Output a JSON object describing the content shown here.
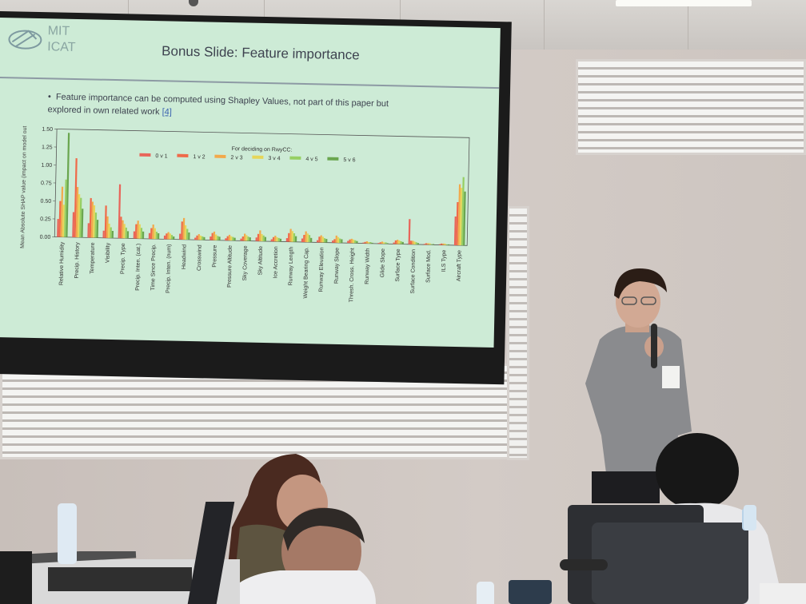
{
  "slide": {
    "logo_text_line1": "MIT",
    "logo_text_line2": "ICAT",
    "title": "Bonus Slide: Feature importance",
    "bullet_text": "Feature importance can be computed using Shapley Values, not part of this paper but explored in own related work",
    "bullet_ref": "[4]"
  },
  "colors": {
    "screen_bg": "#cdebd6",
    "frame": "#1b1b1b",
    "wall": "#cfc7c3",
    "series": [
      "#e8655a",
      "#ef6a4a",
      "#f2a94b",
      "#e6d659",
      "#96cf63",
      "#6aa64f"
    ]
  },
  "chart_data": {
    "type": "bar",
    "title": "",
    "ylabel": "Mean Absolute SHAP value (impact on model output)",
    "xlabel": "",
    "ylim": [
      0,
      1.5
    ],
    "yticks": [
      "0.00",
      "0.25",
      "0.50",
      "0.75",
      "1.00",
      "1.25",
      "1.50"
    ],
    "legend_title": "For deciding on RwyCC:",
    "legend_position": "top-right",
    "categories": [
      "Relative Humidity",
      "Precip. History",
      "Temperature",
      "Visibility",
      "Precip. Type",
      "Precip. Inten. (cat.)",
      "Time Since Precip.",
      "Precip. Inten. (num)",
      "Headwind",
      "Crosswind",
      "Pressure",
      "Pressure Altitude",
      "Sky Coverage",
      "Sky Altitude",
      "Ice Accretion",
      "Runway Length",
      "Weight Bearing Cap.",
      "Runway Elevation",
      "Runway Slope",
      "Thresh. Cross. Height",
      "Runway Width",
      "Glide Slope",
      "Surface Type",
      "Surface Condition",
      "Surface Mod.",
      "ILS Type",
      "Aircraft Type"
    ],
    "series": [
      {
        "name": "0 v 1",
        "values": [
          0.25,
          0.35,
          0.2,
          0.1,
          0.75,
          0.1,
          0.08,
          0.05,
          0.08,
          0.03,
          0.05,
          0.03,
          0.03,
          0.05,
          0.03,
          0.05,
          0.05,
          0.03,
          0.03,
          0.03,
          0.01,
          0.01,
          0.02,
          0.35,
          0.01,
          0.01,
          0.4
        ]
      },
      {
        "name": "1 v 2",
        "values": [
          0.5,
          1.1,
          0.55,
          0.45,
          0.3,
          0.2,
          0.15,
          0.08,
          0.25,
          0.06,
          0.1,
          0.06,
          0.06,
          0.1,
          0.06,
          0.12,
          0.1,
          0.08,
          0.05,
          0.05,
          0.02,
          0.02,
          0.05,
          0.05,
          0.02,
          0.02,
          0.6
        ]
      },
      {
        "name": "2 v 3",
        "values": [
          0.7,
          0.7,
          0.5,
          0.3,
          0.25,
          0.25,
          0.2,
          0.1,
          0.3,
          0.08,
          0.12,
          0.08,
          0.1,
          0.15,
          0.08,
          0.18,
          0.15,
          0.1,
          0.1,
          0.06,
          0.03,
          0.03,
          0.06,
          0.05,
          0.02,
          0.02,
          0.85
        ]
      },
      {
        "name": "3 v 4",
        "values": [
          0.45,
          0.6,
          0.45,
          0.2,
          0.2,
          0.2,
          0.15,
          0.08,
          0.2,
          0.06,
          0.08,
          0.06,
          0.08,
          0.1,
          0.06,
          0.15,
          0.12,
          0.08,
          0.08,
          0.05,
          0.02,
          0.02,
          0.05,
          0.04,
          0.02,
          0.02,
          0.8
        ]
      },
      {
        "name": "4 v 5",
        "values": [
          0.8,
          0.55,
          0.35,
          0.15,
          0.15,
          0.15,
          0.1,
          0.06,
          0.15,
          0.05,
          0.06,
          0.05,
          0.06,
          0.08,
          0.05,
          0.12,
          0.1,
          0.06,
          0.06,
          0.04,
          0.02,
          0.02,
          0.04,
          0.03,
          0.01,
          0.01,
          0.95
        ]
      },
      {
        "name": "5 v 6",
        "values": [
          1.45,
          0.4,
          0.25,
          0.1,
          0.1,
          0.1,
          0.08,
          0.04,
          0.1,
          0.04,
          0.05,
          0.04,
          0.05,
          0.06,
          0.04,
          0.08,
          0.06,
          0.05,
          0.05,
          0.03,
          0.01,
          0.01,
          0.03,
          0.02,
          0.01,
          0.01,
          0.75
        ]
      }
    ]
  }
}
